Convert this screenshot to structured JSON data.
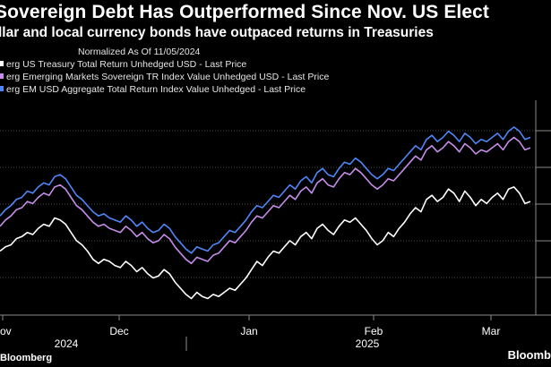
{
  "chart_data": {
    "type": "line",
    "title": "Sovereign Debt Has Outperformed Since Nov. US Elect",
    "subtitle": "llar and local currency bonds have outpaced returns in Treasuries",
    "note": "Normalized As Of 11/05/2024",
    "x_tick_labels": [
      "ov",
      "Dec",
      "Jan",
      "Feb",
      "Mar"
    ],
    "year_labels": [
      "2024",
      "2025"
    ],
    "series": [
      {
        "name": "erg US Treasury Total Return Unhedged USD - Last Price",
        "color": "#ffffff",
        "values": [
          97.3,
          97.5,
          97.6,
          97.9,
          98.0,
          98.2,
          98.1,
          98.4,
          98.6,
          98.5,
          98.9,
          98.8,
          98.6,
          98.2,
          97.8,
          97.6,
          97.3,
          96.9,
          96.7,
          96.9,
          96.8,
          96.6,
          96.5,
          96.8,
          96.6,
          96.3,
          96.5,
          96.2,
          96.0,
          96.1,
          96.4,
          96.2,
          95.8,
          95.5,
          95.2,
          95.0,
          95.3,
          95.1,
          95.0,
          95.2,
          95.1,
          95.3,
          95.5,
          95.4,
          95.7,
          96.0,
          96.4,
          96.8,
          96.6,
          97.0,
          97.3,
          97.2,
          97.5,
          97.8,
          97.6,
          98.0,
          98.2,
          97.9,
          98.4,
          98.6,
          98.3,
          98.1,
          98.5,
          98.8,
          98.7,
          98.9,
          98.6,
          98.3,
          97.9,
          97.6,
          97.8,
          98.2,
          98.0,
          98.4,
          98.7,
          99.1,
          99.4,
          99.2,
          99.8,
          100.0,
          99.7,
          99.9,
          100.3,
          100.1,
          99.7,
          100.2,
          99.9,
          99.5,
          99.8,
          99.6,
          99.9,
          100.1,
          99.8,
          100.3,
          100.4,
          100.1,
          99.6,
          99.7
        ]
      },
      {
        "name": "erg Emerging Markets Sovereign TR Index Value Unhedged USD - Last Price",
        "color": "#c58ce8",
        "values": [
          98.5,
          98.8,
          99.0,
          99.3,
          99.4,
          99.7,
          99.6,
          99.9,
          100.1,
          100.0,
          100.4,
          100.5,
          100.3,
          99.9,
          99.5,
          99.3,
          99.0,
          98.7,
          98.5,
          98.6,
          98.4,
          98.3,
          98.2,
          98.5,
          98.3,
          98.0,
          98.2,
          97.9,
          97.7,
          97.8,
          98.1,
          97.9,
          97.5,
          97.2,
          96.9,
          96.7,
          97.0,
          96.9,
          96.8,
          97.1,
          97.2,
          97.5,
          97.8,
          97.7,
          98.0,
          98.3,
          98.7,
          99.0,
          98.9,
          99.2,
          99.5,
          99.4,
          99.7,
          100.0,
          99.8,
          100.2,
          100.4,
          100.1,
          100.6,
          100.8,
          100.5,
          100.4,
          100.8,
          101.1,
          101.0,
          101.3,
          101.1,
          100.8,
          100.5,
          100.3,
          100.5,
          100.8,
          100.7,
          101.0,
          101.3,
          101.6,
          101.9,
          101.7,
          102.2,
          102.4,
          102.1,
          102.3,
          102.6,
          102.4,
          102.1,
          102.5,
          102.3,
          102.0,
          102.2,
          102.1,
          102.3,
          102.5,
          102.2,
          102.6,
          102.8,
          102.6,
          102.2,
          102.3
        ]
      },
      {
        "name": "erg EM USD Aggregate Total Return Index Value Unhedged - Last Price",
        "color": "#4f86f7",
        "values": [
          99.0,
          99.3,
          99.5,
          99.8,
          99.9,
          100.2,
          100.1,
          100.4,
          100.6,
          100.5,
          100.9,
          101.0,
          100.8,
          100.4,
          100.0,
          99.8,
          99.5,
          99.2,
          99.0,
          99.1,
          98.9,
          98.8,
          98.7,
          99.0,
          98.8,
          98.5,
          98.7,
          98.4,
          98.2,
          98.3,
          98.6,
          98.4,
          98.0,
          97.7,
          97.4,
          97.2,
          97.5,
          97.4,
          97.3,
          97.6,
          97.7,
          98.0,
          98.3,
          98.2,
          98.5,
          98.8,
          99.2,
          99.5,
          99.4,
          99.7,
          100.0,
          99.9,
          100.2,
          100.5,
          100.3,
          100.7,
          100.9,
          100.6,
          101.1,
          101.3,
          101.0,
          100.9,
          101.3,
          101.6,
          101.5,
          101.8,
          101.6,
          101.3,
          101.0,
          100.8,
          101.0,
          101.3,
          101.2,
          101.5,
          101.8,
          102.1,
          102.4,
          102.2,
          102.7,
          102.9,
          102.6,
          102.8,
          103.1,
          102.9,
          102.6,
          103.0,
          102.8,
          102.5,
          102.7,
          102.6,
          102.8,
          103.0,
          102.7,
          103.1,
          103.3,
          103.1,
          102.7,
          102.8
        ]
      }
    ],
    "ylim": [
      94.2,
      104.6
    ],
    "grid": true,
    "legend": "top-left"
  },
  "footer": {
    "source": "Bloomberg",
    "logo": "Bloomb"
  }
}
